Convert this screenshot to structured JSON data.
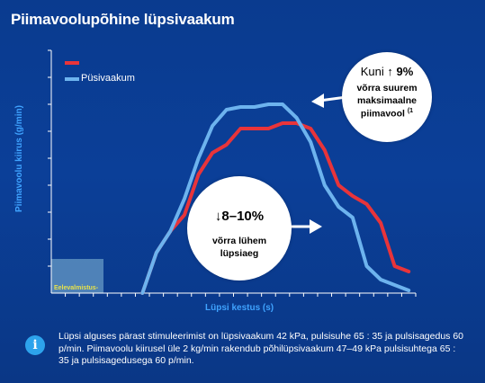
{
  "page": {
    "title": "Piimavoolupõhine lüpsivaakum",
    "info_text": "Lüpsi alguses pärast stimuleerimist on lüpsivaakum 42 kPa, pulsisuhe 65 : 35 ja pulsisagedus 60 p/min. Piimavoolu kiirusel üle 2 kg/min rakendub põhilüpsivaakum 47–49 kPa pulsisuhtega 65 : 35 ja pulsisagedusega 60 p/min.",
    "info_icon": "info-icon",
    "bubble_top": {
      "line1_prefix": "Kuni",
      "line1_value": "9%",
      "line2": "võrra suurem",
      "line3": "maksimaalne",
      "line4": "piimavool",
      "footnote": "(1"
    },
    "bubble_bottom": {
      "value": "8–10%",
      "line2": "võrra lühem",
      "line3": "lüpsiaeg"
    },
    "baseline_label": "Eelevalmistus-",
    "colors": {
      "red": "#e8343a",
      "blue": "#6db3ee",
      "axis": "#ffffff",
      "label": "#3fa3ff"
    }
  },
  "chart_data": {
    "type": "line",
    "title": "Piimavoolupõhine lüpsivaakum",
    "xlabel": "Lüpsi kestus (s)",
    "ylabel": "Piimavoolu kiirus (g/min)",
    "xlim": [
      0,
      26
    ],
    "ylim": [
      0,
      9
    ],
    "series": [
      {
        "name": "",
        "color": "#e8343a",
        "x": [
          6.5,
          7.5,
          8.5,
          9.5,
          10.5,
          11.5,
          12.5,
          13.5,
          14.5,
          15.5,
          16.5,
          17.5,
          18.5,
          19.5,
          20.5,
          21.5,
          22.5,
          23.5,
          24.5,
          25.5
        ],
        "y": [
          0,
          1.5,
          2.3,
          2.9,
          4.4,
          5.2,
          5.5,
          6.1,
          6.1,
          6.1,
          6.3,
          6.3,
          6.1,
          5.3,
          4.0,
          3.6,
          3.3,
          2.6,
          1.0,
          0.8
        ]
      },
      {
        "name": "Püsivaakum",
        "color": "#6db3ee",
        "x": [
          6.5,
          7.5,
          8.5,
          9.5,
          10.5,
          11.5,
          12.5,
          13.5,
          14.5,
          15.5,
          16.5,
          17.5,
          18.5,
          19.5,
          20.5,
          21.5,
          22.5,
          23.5,
          24.5,
          25.5
        ],
        "y": [
          0,
          1.5,
          2.3,
          3.5,
          5.0,
          6.2,
          6.8,
          6.9,
          6.9,
          7.0,
          7.0,
          6.5,
          5.6,
          4.0,
          3.2,
          2.8,
          1.0,
          0.5,
          0.3,
          0.1
        ]
      }
    ]
  }
}
